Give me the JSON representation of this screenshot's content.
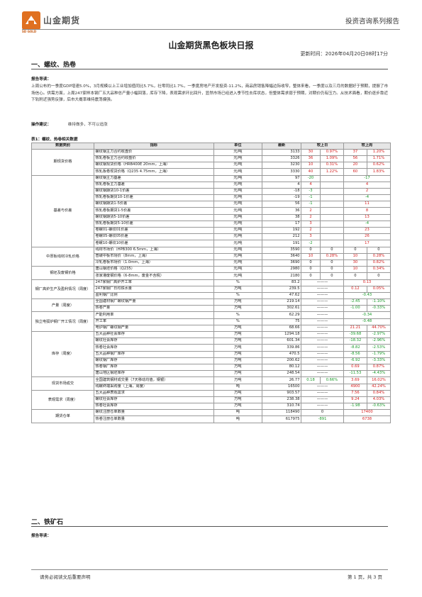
{
  "header": {
    "logo_text": "山金期货",
    "logo_en": "SD GOLD",
    "series": "投资咨询系列报告"
  },
  "title": "山金期货黑色板块日报",
  "update_time": "更新时间：2026年04月20日08时17分",
  "section1": {
    "heading": "一、螺纹、热卷",
    "guide_label": "报告导读：",
    "guide_text": "上周公布的一季度GDP增速5.0%，3月规模以上工业增加值同比5.7%，社零同比1.7%，一季度房地产开发投资-11.2%，商品房销售降幅边际收窄，整体来看，一季度以及三月的数据好于预期，提振了市场信心。供需方面，上周247家样本钢厂五大品种总产量小幅回落，库存下降，表观需求环比回升，显然市场已经进入季节性去库状态，但整体需求弱于预期，对期价仍有压力。从技术面看，期价逐步靠近下轨附近强势反弹，后市大概率维持震荡偏强。",
    "op_label": "操作建议：",
    "op_text": "维持做多，不可以追涨",
    "table_caption": "表1：螺纹、热卷相关数据",
    "columns": [
      "数据类别",
      "指标",
      "单位",
      "最新",
      "较上日",
      "较上周"
    ],
    "groups": [
      {
        "category": "期现货价格",
        "rows": [
          {
            "indicator": "螺纹钢主力合约收盘价",
            "unit": "元/吨",
            "latest": "3133",
            "d1": "30",
            "d1p": "0.97%",
            "w1": "37",
            "w1p": "1.20%",
            "d1c": "red",
            "w1c": "red"
          },
          {
            "indicator": "热轧卷板主力合约收盘价",
            "unit": "元/吨",
            "latest": "3326",
            "d1": "36",
            "d1p": "1.09%",
            "w1": "56",
            "w1p": "1.71%",
            "d1c": "red",
            "w1c": "red"
          },
          {
            "indicator": "螺纹钢现货价格（HRB400E 20mm，上海）",
            "unit": "元/吨",
            "latest": "3230",
            "d1": "10",
            "d1p": "0.31%",
            "w1": "20",
            "w1p": "0.62%",
            "d1c": "red",
            "w1c": "red"
          },
          {
            "indicator": "热轧板卷现货价格（Q235 4.75mm，上海）",
            "unit": "元/吨",
            "latest": "3330",
            "d1": "40",
            "d1p": "1.22%",
            "w1": "60",
            "w1p": "1.83%",
            "d1c": "red",
            "w1c": "red"
          }
        ]
      },
      {
        "category": "基差与价差",
        "rows": [
          {
            "indicator": "螺纹钢主力基差",
            "unit": "元/吨",
            "latest": "97",
            "d1": "-20",
            "d1p": "",
            "w1": "-17",
            "w1p": "",
            "d1c": "green",
            "w1c": "green"
          },
          {
            "indicator": "热轧卷板主力基差",
            "unit": "元/吨",
            "latest": "4",
            "d1": "4",
            "d1p": "",
            "w1": "4",
            "w1p": "",
            "d1c": "red",
            "w1c": "red"
          },
          {
            "indicator": "螺纹钢期货10-1价差",
            "unit": "元/吨",
            "latest": "-18",
            "d1": "-3",
            "d1p": "",
            "w1": "2",
            "w1p": "",
            "d1c": "green",
            "w1c": "red"
          },
          {
            "indicator": "热轧卷板期货10-1价差",
            "unit": "元/吨",
            "latest": "-19",
            "d1": "-1",
            "d1p": "",
            "w1": "-4",
            "w1p": "",
            "d1c": "green",
            "w1c": "green"
          },
          {
            "indicator": "螺纹钢期货1-5价差",
            "unit": "元/吨",
            "latest": "56",
            "d1": "-1",
            "d1p": "",
            "w1": "11",
            "w1p": "",
            "d1c": "green",
            "w1c": "red"
          },
          {
            "indicator": "热轧卷板期货1-5价差",
            "unit": "元/吨",
            "latest": "36",
            "d1": "2",
            "d1p": "",
            "w1": "8",
            "w1p": "",
            "d1c": "red",
            "w1c": "red"
          },
          {
            "indicator": "螺纹钢期货5-10价差",
            "unit": "元/吨",
            "latest": "38",
            "d1": "2",
            "d1p": "",
            "w1": "13",
            "w1p": "",
            "d1c": "red",
            "w1c": "red"
          },
          {
            "indicator": "热轧卷板期货5-10价差",
            "unit": "元/吨",
            "latest": "17",
            "d1": "3",
            "d1p": "",
            "w1": "-4",
            "w1p": "",
            "d1c": "red",
            "w1c": "green"
          },
          {
            "indicator": "卷螺01-螺纹01价差",
            "unit": "元/吨",
            "latest": "192",
            "d1": "2",
            "d1p": "",
            "w1": "23",
            "w1p": "",
            "d1c": "red",
            "w1c": "red"
          },
          {
            "indicator": "卷螺05-螺纹05价差",
            "unit": "元/吨",
            "latest": "212",
            "d1": "3",
            "d1p": "",
            "w1": "26",
            "w1p": "",
            "d1c": "red",
            "w1c": "red"
          },
          {
            "indicator": "卷螺10-螺纹10价差",
            "unit": "元/吨",
            "latest": "191",
            "d1": "-2",
            "d1p": "",
            "w1": "17",
            "w1p": "",
            "d1c": "green",
            "w1c": "red"
          }
        ]
      },
      {
        "category": "中厚板线材冷轧价格",
        "rows": [
          {
            "indicator": "线材市场价（HPB300 6.5mm，上海）",
            "unit": "元/吨",
            "latest": "3590",
            "d1": "0",
            "d1p": "0",
            "w1": "0",
            "w1p": "0",
            "d1c": "",
            "w1c": ""
          },
          {
            "indicator": "普碳中板市场价（8mm，上海）",
            "unit": "元/吨",
            "latest": "3640",
            "d1": "10",
            "d1p": "0.28%",
            "w1": "10",
            "w1p": "0.28%",
            "d1c": "red",
            "w1c": "red"
          },
          {
            "indicator": "冷轧卷板市场价（1.0mm，上海）",
            "unit": "元/吨",
            "latest": "3690",
            "d1": "0",
            "d1p": "0",
            "w1": "30",
            "w1p": "0.82%",
            "d1c": "",
            "w1c": "red"
          }
        ]
      },
      {
        "category": "钢坯及废钢价格",
        "rows": [
          {
            "indicator": "唐山钢坯价格（Q235）",
            "unit": "元/吨",
            "latest": "2980",
            "d1": "0",
            "d1p": "0",
            "w1": "10",
            "w1p": "0.34%",
            "d1c": "",
            "w1c": "red"
          },
          {
            "indicator": "张家港废钢价格（6-8mm，废金不含税）",
            "unit": "元/吨",
            "latest": "2180",
            "d1": "0",
            "d1p": "0",
            "w1": "0",
            "w1p": "0",
            "d1c": "",
            "w1c": ""
          }
        ]
      },
      {
        "category": "钢厂高炉生产及盈利情况（周度）",
        "rows": [
          {
            "indicator": "247家钢厂高炉开工率",
            "unit": "%",
            "latest": "83.2",
            "d1": "———",
            "d1p": "",
            "w1": "0.13",
            "w1p": "",
            "d1c": "",
            "w1c": "red",
            "merge": true
          },
          {
            "indicator": "247家钢厂日均铁水量",
            "unit": "万吨",
            "latest": "239.5",
            "d1": "———",
            "d1p": "",
            "w1": "0.12",
            "w1p": "0.05%",
            "d1c": "",
            "w1c": "red"
          },
          {
            "indicator": "盈利钢厂比例",
            "unit": "%",
            "latest": "47.62",
            "d1": "———",
            "d1p": "",
            "w1": "-0.43",
            "w1p": "",
            "d1c": "",
            "w1c": "green",
            "merge": true
          }
        ]
      },
      {
        "category": "产量（周度）",
        "rows": [
          {
            "indicator": "全国建材钢厂螺纹钢产量",
            "unit": "万吨",
            "latest": "219.14",
            "d1": "———",
            "d1p": "",
            "w1": "-2.45",
            "w1p": "-1.10%",
            "d1c": "",
            "w1c": "green"
          },
          {
            "indicator": "热卷产量",
            "unit": "万吨",
            "latest": "302.61",
            "d1": "———",
            "d1p": "",
            "w1": "-1.00",
            "w1p": "-0.33%",
            "d1c": "",
            "w1c": "green"
          }
        ]
      },
      {
        "category": "独立电弧炉钢厂开工情况（周度）",
        "rows": [
          {
            "indicator": "产能利用率",
            "unit": "%",
            "latest": "62.29",
            "d1": "———",
            "d1p": "",
            "w1": "-0.34",
            "w1p": "",
            "d1c": "",
            "w1c": "green",
            "merge": true
          },
          {
            "indicator": "开工率",
            "unit": "%",
            "latest": "75",
            "d1": "———",
            "d1p": "",
            "w1": "-0.48",
            "w1p": "",
            "d1c": "",
            "w1c": "green",
            "merge": true
          },
          {
            "indicator": "电炉钢厂螺纹钢产量",
            "unit": "万吨",
            "latest": "68.66",
            "d1": "———",
            "d1p": "",
            "w1": "21.21",
            "w1p": "44.70%",
            "d1c": "",
            "w1c": "red"
          }
        ]
      },
      {
        "category": "库存（周度）",
        "rows": [
          {
            "indicator": "五大品种社会库存",
            "unit": "万吨",
            "latest": "1294.18",
            "d1": "———",
            "d1p": "",
            "w1": "-39.68",
            "w1p": "-2.97%",
            "d1c": "",
            "w1c": "green"
          },
          {
            "indicator": "螺纹社会库存",
            "unit": "万吨",
            "latest": "601.34",
            "d1": "———",
            "d1p": "",
            "w1": "-18.32",
            "w1p": "-2.96%",
            "d1c": "",
            "w1c": "green"
          },
          {
            "indicator": "热卷社会库存",
            "unit": "万吨",
            "latest": "339.86",
            "d1": "———",
            "d1p": "",
            "w1": "-8.82",
            "w1p": "-2.53%",
            "d1c": "",
            "w1c": "green"
          },
          {
            "indicator": "五大品种钢厂库存",
            "unit": "万吨",
            "latest": "470.5",
            "d1": "———",
            "d1p": "",
            "w1": "-8.56",
            "w1p": "-1.79%",
            "d1c": "",
            "w1c": "green"
          },
          {
            "indicator": "螺纹钢厂库存",
            "unit": "万吨",
            "latest": "200.62",
            "d1": "———",
            "d1p": "",
            "w1": "-6.92",
            "w1p": "-3.33%",
            "d1c": "",
            "w1c": "green"
          },
          {
            "indicator": "热卷钢厂库存",
            "unit": "万吨",
            "latest": "80.12",
            "d1": "———",
            "d1p": "",
            "w1": "0.69",
            "w1p": "0.87%",
            "d1c": "",
            "w1c": "red"
          },
          {
            "indicator": "唐山地区钢坯库存",
            "unit": "万吨",
            "latest": "248.54",
            "d1": "———",
            "d1p": "",
            "w1": "-11.53",
            "w1p": "-4.43%",
            "d1c": "",
            "w1c": "green"
          }
        ]
      },
      {
        "category": "现货市场成交",
        "rows": [
          {
            "indicator": "全国建筑钢材成交量（7天移动均值，钢银）",
            "unit": "万吨",
            "latest": "26.77",
            "d1": "0.18",
            "d1p": "0.66%",
            "w1": "3.69",
            "w1p": "16.02%",
            "d1c": "green",
            "w1c": "red"
          },
          {
            "indicator": "线螺终端采购量（上海，周度）",
            "unit": "吨",
            "latest": "16500",
            "d1": "———",
            "d1p": "",
            "w1": "4900",
            "w1p": "42.24%",
            "d1c": "",
            "w1c": "red"
          }
        ]
      },
      {
        "category": "表观需求（周度）",
        "rows": [
          {
            "indicator": "五大品种表观需求",
            "unit": "万吨",
            "latest": "903.57",
            "d1": "———",
            "d1p": "",
            "w1": "7.56",
            "w1p": "0.84%",
            "d1c": "",
            "w1c": "red"
          },
          {
            "indicator": "螺纹社会库存",
            "unit": "万吨",
            "latest": "238.38",
            "d1": "———",
            "d1p": "",
            "w1": "9.24",
            "w1p": "4.03%",
            "d1c": "",
            "w1c": "red"
          },
          {
            "indicator": "热卷社会库存",
            "unit": "万吨",
            "latest": "310.74",
            "d1": "———",
            "d1p": "",
            "w1": "-1.98",
            "w1p": "-0.63%",
            "d1c": "",
            "w1c": "green"
          }
        ]
      },
      {
        "category": "期货仓单",
        "rows": [
          {
            "indicator": "螺纹注册仓单数量",
            "unit": "吨",
            "latest": "118490",
            "d1": "0",
            "d1p": "",
            "w1": "17400",
            "w1p": "",
            "d1c": "",
            "w1c": "red",
            "splitd": true
          },
          {
            "indicator": "热卷注册仓单数量",
            "unit": "吨",
            "latest": "617975",
            "d1": "-891",
            "d1p": "",
            "w1": "6738",
            "w1p": "",
            "d1c": "green",
            "w1c": "red",
            "splitd": true
          }
        ]
      }
    ]
  },
  "section2": {
    "heading": "二、铁矿石",
    "guide_label": "报告导读："
  },
  "footer": {
    "left": "请务必阅读文后重要声明",
    "right": "第 1 页，共 3 页"
  }
}
